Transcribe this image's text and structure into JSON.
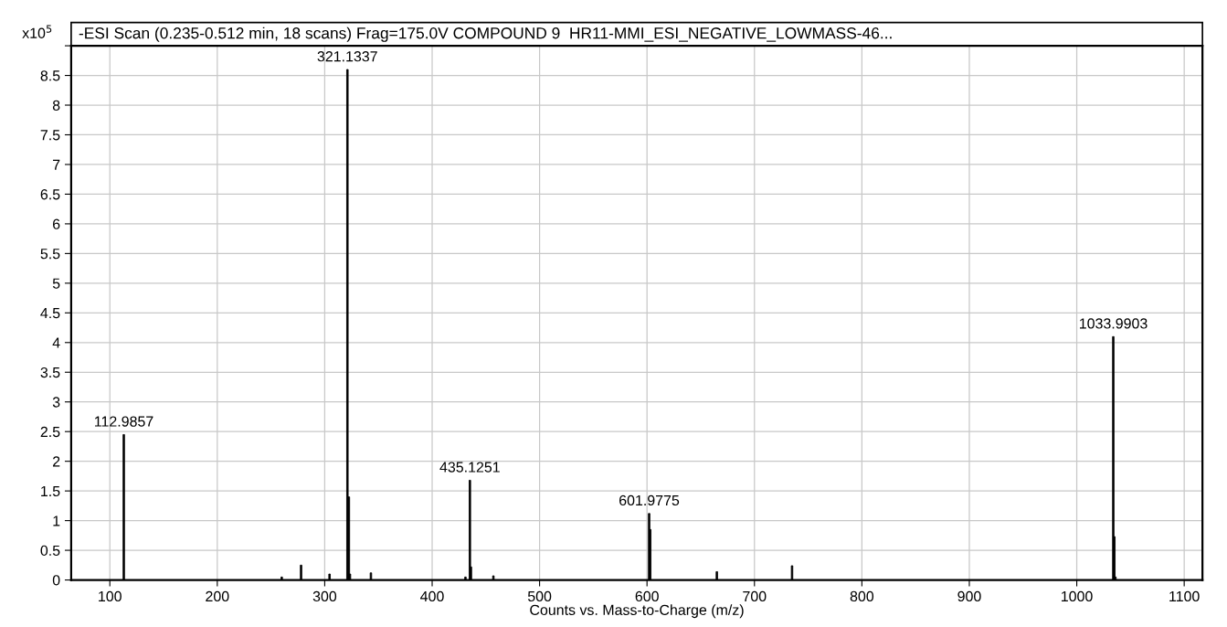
{
  "chart_data": {
    "type": "bar",
    "title": "-ESI Scan (0.235-0.512 min, 18 scans) Frag=175.0V COMPOUND 9  HR11-MMI_ESI_NEGATIVE_LOWMASS-46...",
    "xlabel": "Counts vs. Mass-to-Charge (m/z)",
    "ylabel": "x10$^{5}$",
    "x": [
      112.9857,
      260,
      278,
      304.5,
      321.1337,
      322.5,
      323.5,
      343,
      431,
      435.1251,
      436.1,
      457,
      601.9775,
      603,
      665,
      735,
      1033.9903,
      1035,
      1036
    ],
    "values": [
      2.45,
      0.05,
      0.25,
      0.1,
      8.6,
      1.4,
      0.1,
      0.12,
      0.05,
      1.68,
      0.22,
      0.07,
      1.12,
      0.85,
      0.14,
      0.24,
      4.1,
      0.73,
      0.05
    ],
    "color": "#000000",
    "xlim": [
      64,
      1117
    ],
    "xticks": [
      100,
      200,
      300,
      400,
      500,
      600,
      700,
      800,
      900,
      1000,
      1100
    ],
    "ylim": [
      0,
      9
    ],
    "yticks": [
      0,
      0.5,
      1,
      1.5,
      2,
      2.5,
      3,
      3.5,
      4,
      4.5,
      5,
      5.5,
      6,
      6.5,
      7,
      7.5,
      8,
      8.5,
      {
        "value": 9,
        "label": null
      }
    ],
    "grid": true,
    "annotations": [
      {
        "text": "112.9857",
        "x": 112.9857,
        "y": 2.45
      },
      {
        "text": "321.1337",
        "x": 321.1337,
        "y": 8.6
      },
      {
        "text": "435.1251",
        "x": 435.1251,
        "y": 1.68
      },
      {
        "text": "601.9775",
        "x": 601.9775,
        "y": 1.12
      },
      {
        "text": "1033.9903",
        "x": 1033.9903,
        "y": 4.1
      }
    ]
  }
}
